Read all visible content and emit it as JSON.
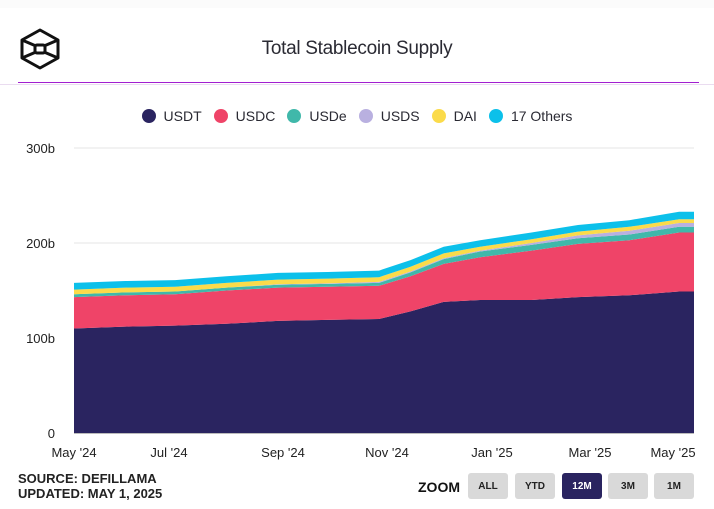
{
  "header": {
    "title": "Total Stablecoin Supply",
    "logo_icon": "cube-logo-icon"
  },
  "legend": [
    {
      "label": "USDT",
      "color": "#2a2460"
    },
    {
      "label": "USDC",
      "color": "#ef4468"
    },
    {
      "label": "USDe",
      "color": "#40b8aa"
    },
    {
      "label": "USDS",
      "color": "#b9b0e0"
    },
    {
      "label": "DAI",
      "color": "#fbdb4a"
    },
    {
      "label": "17 Others",
      "color": "#0cc0ea"
    }
  ],
  "chart_data": {
    "type": "area",
    "stacked": true,
    "title": "Total Stablecoin Supply",
    "xlabel": "",
    "ylabel": "",
    "ylim": [
      0,
      300
    ],
    "y_unit": "b",
    "y_ticks": [
      "0",
      "100b",
      "200b",
      "300b"
    ],
    "x_ticks": [
      "May '24",
      "Jul '24",
      "Sep '24",
      "Nov '24",
      "Jan '25",
      "Mar '25",
      "May '25"
    ],
    "grid": true,
    "legend_position": "top",
    "x": [
      "2024-05-01",
      "2024-06-01",
      "2024-07-01",
      "2024-08-01",
      "2024-09-01",
      "2024-10-01",
      "2024-11-01",
      "2024-11-20",
      "2024-12-10",
      "2025-01-01",
      "2025-02-01",
      "2025-03-01",
      "2025-04-01",
      "2025-05-01"
    ],
    "series": [
      {
        "name": "USDT",
        "values": [
          110,
          112,
          113,
          115,
          118,
          119,
          120,
          128,
          138,
          140,
          140,
          143,
          145,
          149
        ]
      },
      {
        "name": "USDC",
        "values": [
          33,
          33,
          33,
          35,
          35,
          35,
          35,
          37,
          40,
          45,
          52,
          56,
          58,
          62
        ]
      },
      {
        "name": "USDe",
        "values": [
          3,
          3,
          3,
          3,
          3,
          3,
          3,
          4,
          5,
          6,
          6,
          6,
          6,
          6
        ]
      },
      {
        "name": "USDS",
        "values": [
          0,
          0,
          0,
          0,
          0.5,
          0.5,
          1,
          1,
          1,
          1,
          2,
          3,
          4,
          4
        ]
      },
      {
        "name": "DAI",
        "values": [
          5,
          5,
          5,
          5,
          5,
          5,
          5,
          5,
          5,
          4,
          4,
          4,
          4,
          4
        ]
      },
      {
        "name": "17 Others",
        "values": [
          7,
          7,
          7,
          7,
          7,
          7,
          7,
          7,
          7,
          7,
          7,
          7,
          7,
          8
        ]
      }
    ]
  },
  "footer": {
    "source": "SOURCE: DEFILLAMA",
    "updated": "UPDATED: MAY 1, 2025"
  },
  "zoom": {
    "label": "ZOOM",
    "buttons": [
      {
        "label": "ALL",
        "active": false
      },
      {
        "label": "YTD",
        "active": false
      },
      {
        "label": "12M",
        "active": true
      },
      {
        "label": "3M",
        "active": false
      },
      {
        "label": "1M",
        "active": false
      }
    ]
  }
}
